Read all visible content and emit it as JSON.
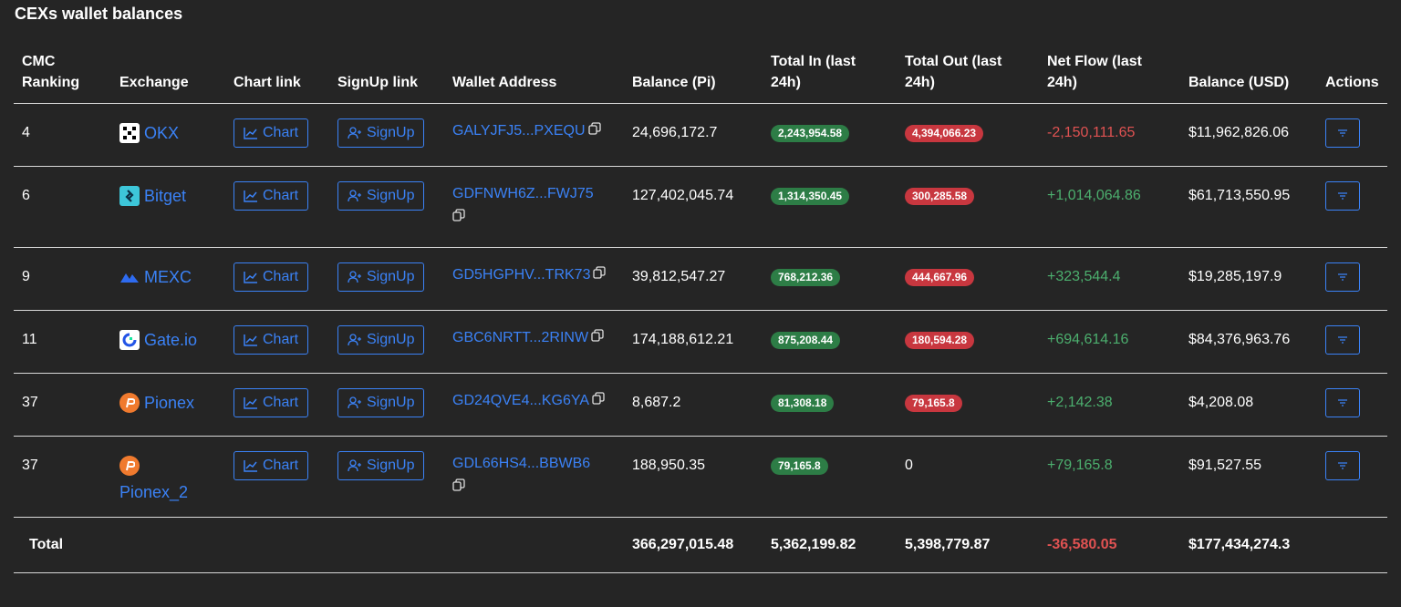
{
  "page": {
    "title": "CEXs wallet balances"
  },
  "table": {
    "headers": {
      "rank_line1": "CMC",
      "rank_line2": "Ranking",
      "exchange": "Exchange",
      "chart": "Chart link",
      "signup": "SignUp link",
      "wallet": "Wallet Address",
      "balance_pi": "Balance (Pi)",
      "in_line1": "Total In (last",
      "in_line2": "24h)",
      "out_line1": "Total Out (last",
      "out_line2": "24h)",
      "net_line1": "Net Flow (last",
      "net_line2": "24h)",
      "balance_usd": "Balance (USD)",
      "actions": "Actions"
    },
    "rows": [
      {
        "rank": "4",
        "exchange": "OKX",
        "chart": "Chart",
        "signup": "SignUp",
        "wallet": "GALYJFJ5...PXEQU",
        "balance_pi": "24,696,172.7",
        "total_in": "2,243,954.58",
        "total_out": "4,394,066.23",
        "net_flow": "-2,150,111.65",
        "balance_usd": "$11,962,826.06"
      },
      {
        "rank": "6",
        "exchange": "Bitget",
        "chart": "Chart",
        "signup": "SignUp",
        "wallet": "GDFNWH6Z...FWJ75",
        "balance_pi": "127,402,045.74",
        "total_in": "1,314,350.45",
        "total_out": "300,285.58",
        "net_flow": "+1,014,064.86",
        "balance_usd": "$61,713,550.95"
      },
      {
        "rank": "9",
        "exchange": "MEXC",
        "chart": "Chart",
        "signup": "SignUp",
        "wallet": "GD5HGPHV...TRK73",
        "balance_pi": "39,812,547.27",
        "total_in": "768,212.36",
        "total_out": "444,667.96",
        "net_flow": "+323,544.4",
        "balance_usd": "$19,285,197.9"
      },
      {
        "rank": "11",
        "exchange": "Gate.io",
        "chart": "Chart",
        "signup": "SignUp",
        "wallet": "GBC6NRTT...2RINW",
        "balance_pi": "174,188,612.21",
        "total_in": "875,208.44",
        "total_out": "180,594.28",
        "net_flow": "+694,614.16",
        "balance_usd": "$84,376,963.76"
      },
      {
        "rank": "37",
        "exchange": "Pionex",
        "chart": "Chart",
        "signup": "SignUp",
        "wallet": "GD24QVE4...KG6YA",
        "balance_pi": "8,687.2",
        "total_in": "81,308.18",
        "total_out": "79,165.8",
        "net_flow": "+2,142.38",
        "balance_usd": "$4,208.08"
      },
      {
        "rank": "37",
        "exchange": "Pionex_2",
        "chart": "Chart",
        "signup": "SignUp",
        "wallet": "GDL66HS4...BBWB6",
        "balance_pi": "188,950.35",
        "total_in": "79,165.8",
        "total_out": "0",
        "net_flow": "+79,165.8",
        "balance_usd": "$91,527.55"
      }
    ],
    "total": {
      "label": "Total",
      "balance_pi": "366,297,015.48",
      "total_in": "5,362,199.82",
      "total_out": "5,398,779.87",
      "net_flow": "-36,580.05",
      "balance_usd": "$177,434,274.3"
    }
  },
  "colors": {
    "link": "#3b82f6",
    "in_badge": "#2d7d46",
    "out_badge": "#c8373f",
    "negative": "#e05252",
    "positive": "#4caf6e"
  }
}
